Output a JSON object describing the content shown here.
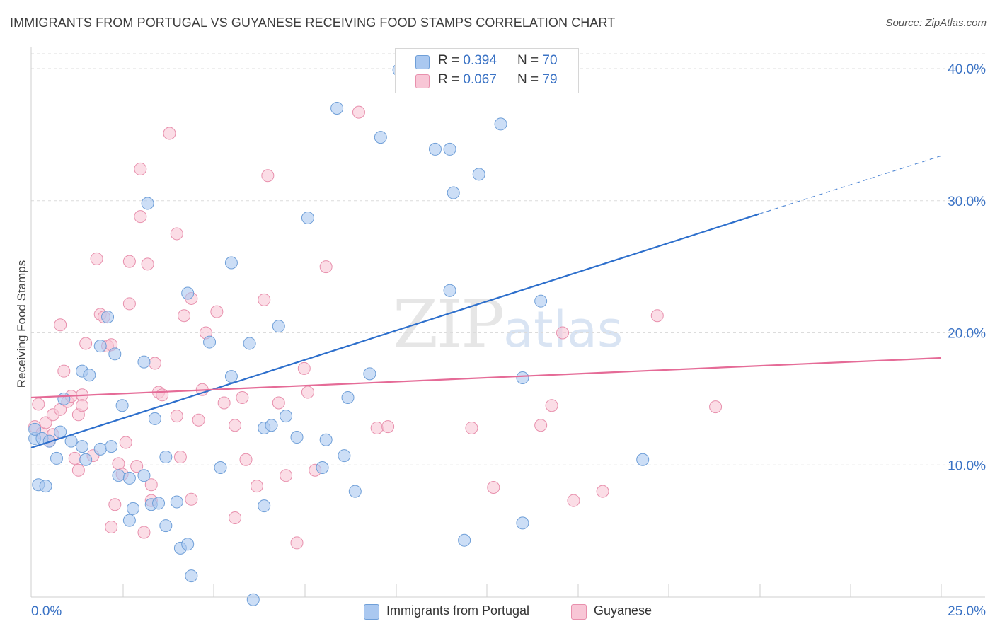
{
  "header": {
    "title": "IMMIGRANTS FROM PORTUGAL VS GUYANESE RECEIVING FOOD STAMPS CORRELATION CHART",
    "source": "Source: ZipAtlas.com"
  },
  "watermark": {
    "zip": "ZIP",
    "atlas": "atlas"
  },
  "legend_top": {
    "rows": [
      {
        "r_label": "R =",
        "r_value": "0.394",
        "n_label": "N =",
        "n_value": "70",
        "color": "#aac8f0",
        "border": "#6f9fd8"
      },
      {
        "r_label": "R =",
        "r_value": "0.067",
        "n_label": "N =",
        "n_value": "79",
        "color": "#f8c6d6",
        "border": "#e890ad"
      }
    ]
  },
  "legend_bottom": [
    {
      "label": "Immigrants from Portugal",
      "color": "#aac8f0",
      "border": "#6f9fd8"
    },
    {
      "label": "Guyanese",
      "color": "#f8c6d6",
      "border": "#e890ad"
    }
  ],
  "chart_data": {
    "type": "scatter",
    "title": "IMMIGRANTS FROM PORTUGAL VS GUYANESE RECEIVING FOOD STAMPS CORRELATION CHART",
    "xlabel": "",
    "ylabel": "Receiving Food Stamps",
    "xlim": [
      0,
      25
    ],
    "ylim": [
      0,
      40
    ],
    "x_tick_labels": [
      "0.0%",
      "25.0%"
    ],
    "y_tick_labels": [
      "10.0%",
      "20.0%",
      "30.0%",
      "40.0%"
    ],
    "y_ticks": [
      10,
      20,
      30,
      40
    ],
    "grid": true,
    "legend": "bottom",
    "series": [
      {
        "name": "Immigrants from Portugal",
        "color": "#6f9fd8",
        "fill": "#aac8f0",
        "trend": {
          "x0": 0,
          "y0": 11.3,
          "x1": 20,
          "y1": 29.0,
          "dash_to_x": 25,
          "dash_to_y": 33.4,
          "color": "#2d6fcc"
        },
        "points": [
          [
            0.1,
            12.0
          ],
          [
            0.1,
            12.7
          ],
          [
            0.2,
            8.5
          ],
          [
            0.3,
            12.0
          ],
          [
            0.4,
            8.4
          ],
          [
            0.5,
            11.8
          ],
          [
            0.7,
            10.5
          ],
          [
            0.8,
            12.5
          ],
          [
            0.9,
            15.0
          ],
          [
            1.1,
            11.8
          ],
          [
            1.4,
            17.1
          ],
          [
            1.4,
            11.4
          ],
          [
            1.5,
            10.4
          ],
          [
            1.6,
            16.8
          ],
          [
            1.9,
            11.2
          ],
          [
            1.9,
            19.0
          ],
          [
            2.1,
            21.2
          ],
          [
            2.2,
            11.4
          ],
          [
            2.3,
            18.4
          ],
          [
            2.4,
            9.2
          ],
          [
            2.5,
            14.5
          ],
          [
            2.7,
            5.8
          ],
          [
            2.7,
            9.0
          ],
          [
            2.8,
            6.7
          ],
          [
            3.1,
            9.2
          ],
          [
            3.1,
            17.8
          ],
          [
            3.2,
            29.8
          ],
          [
            3.3,
            7.0
          ],
          [
            3.4,
            13.5
          ],
          [
            3.5,
            7.1
          ],
          [
            3.7,
            5.4
          ],
          [
            3.7,
            10.6
          ],
          [
            4.0,
            7.2
          ],
          [
            4.1,
            3.7
          ],
          [
            4.3,
            4.0
          ],
          [
            4.3,
            23.0
          ],
          [
            4.4,
            1.6
          ],
          [
            4.9,
            19.3
          ],
          [
            5.2,
            9.8
          ],
          [
            5.5,
            25.3
          ],
          [
            5.5,
            16.7
          ],
          [
            6.0,
            19.2
          ],
          [
            6.1,
            -0.2
          ],
          [
            6.4,
            6.9
          ],
          [
            6.4,
            12.8
          ],
          [
            6.6,
            13.0
          ],
          [
            6.8,
            20.5
          ],
          [
            7.0,
            13.7
          ],
          [
            7.3,
            12.1
          ],
          [
            7.6,
            28.7
          ],
          [
            8.0,
            9.8
          ],
          [
            8.1,
            11.9
          ],
          [
            8.4,
            37.0
          ],
          [
            8.6,
            10.7
          ],
          [
            8.7,
            15.1
          ],
          [
            8.9,
            8.0
          ],
          [
            9.3,
            16.9
          ],
          [
            9.6,
            34.8
          ],
          [
            10.1,
            39.9
          ],
          [
            11.1,
            33.9
          ],
          [
            11.5,
            33.9
          ],
          [
            11.6,
            30.6
          ],
          [
            11.5,
            23.2
          ],
          [
            11.9,
            4.3
          ],
          [
            12.3,
            32.0
          ],
          [
            12.9,
            35.8
          ],
          [
            13.5,
            16.6
          ],
          [
            13.5,
            5.6
          ],
          [
            14.0,
            22.4
          ],
          [
            16.8,
            10.4
          ]
        ]
      },
      {
        "name": "Guyanese",
        "color": "#e890ad",
        "fill": "#f8c6d6",
        "trend": {
          "x0": 0,
          "y0": 15.1,
          "x1": 25,
          "y1": 18.1,
          "color": "#e56b97"
        },
        "points": [
          [
            0.1,
            12.9
          ],
          [
            0.2,
            14.6
          ],
          [
            0.3,
            12.4
          ],
          [
            0.4,
            13.2
          ],
          [
            0.5,
            11.8
          ],
          [
            0.6,
            13.8
          ],
          [
            0.6,
            12.3
          ],
          [
            0.8,
            14.2
          ],
          [
            0.8,
            20.6
          ],
          [
            0.9,
            17.1
          ],
          [
            1.0,
            14.8
          ],
          [
            1.1,
            15.2
          ],
          [
            1.2,
            10.5
          ],
          [
            1.3,
            9.6
          ],
          [
            1.3,
            13.8
          ],
          [
            1.4,
            15.3
          ],
          [
            1.4,
            14.5
          ],
          [
            1.5,
            19.2
          ],
          [
            1.7,
            10.7
          ],
          [
            1.8,
            25.6
          ],
          [
            1.9,
            21.4
          ],
          [
            2.0,
            21.2
          ],
          [
            2.1,
            19.0
          ],
          [
            2.2,
            5.3
          ],
          [
            2.2,
            19.1
          ],
          [
            2.3,
            7.0
          ],
          [
            2.4,
            10.1
          ],
          [
            2.5,
            9.3
          ],
          [
            2.6,
            11.7
          ],
          [
            2.7,
            25.4
          ],
          [
            2.7,
            22.2
          ],
          [
            2.9,
            9.9
          ],
          [
            3.0,
            28.8
          ],
          [
            3.0,
            32.4
          ],
          [
            3.1,
            4.9
          ],
          [
            3.2,
            25.2
          ],
          [
            3.3,
            7.3
          ],
          [
            3.3,
            8.5
          ],
          [
            3.4,
            17.7
          ],
          [
            3.5,
            15.5
          ],
          [
            3.6,
            15.3
          ],
          [
            3.8,
            35.1
          ],
          [
            4.0,
            27.5
          ],
          [
            4.0,
            13.7
          ],
          [
            4.1,
            10.6
          ],
          [
            4.2,
            21.3
          ],
          [
            4.4,
            22.6
          ],
          [
            4.4,
            7.4
          ],
          [
            4.6,
            13.4
          ],
          [
            4.7,
            15.7
          ],
          [
            4.8,
            20.0
          ],
          [
            5.1,
            21.6
          ],
          [
            5.3,
            14.7
          ],
          [
            5.6,
            6.0
          ],
          [
            5.6,
            13.0
          ],
          [
            5.8,
            15.1
          ],
          [
            5.9,
            10.4
          ],
          [
            6.2,
            8.4
          ],
          [
            6.4,
            22.5
          ],
          [
            6.5,
            31.9
          ],
          [
            6.8,
            14.7
          ],
          [
            7.0,
            9.2
          ],
          [
            7.3,
            4.1
          ],
          [
            7.5,
            17.3
          ],
          [
            7.6,
            15.5
          ],
          [
            7.8,
            9.6
          ],
          [
            8.1,
            25.0
          ],
          [
            9.0,
            36.7
          ],
          [
            9.5,
            12.8
          ],
          [
            9.8,
            12.9
          ],
          [
            12.1,
            12.8
          ],
          [
            12.7,
            8.3
          ],
          [
            14.0,
            13.0
          ],
          [
            14.3,
            14.5
          ],
          [
            14.6,
            20.0
          ],
          [
            14.9,
            7.3
          ],
          [
            15.7,
            8.0
          ],
          [
            17.2,
            21.3
          ],
          [
            18.8,
            14.4
          ]
        ]
      }
    ]
  }
}
